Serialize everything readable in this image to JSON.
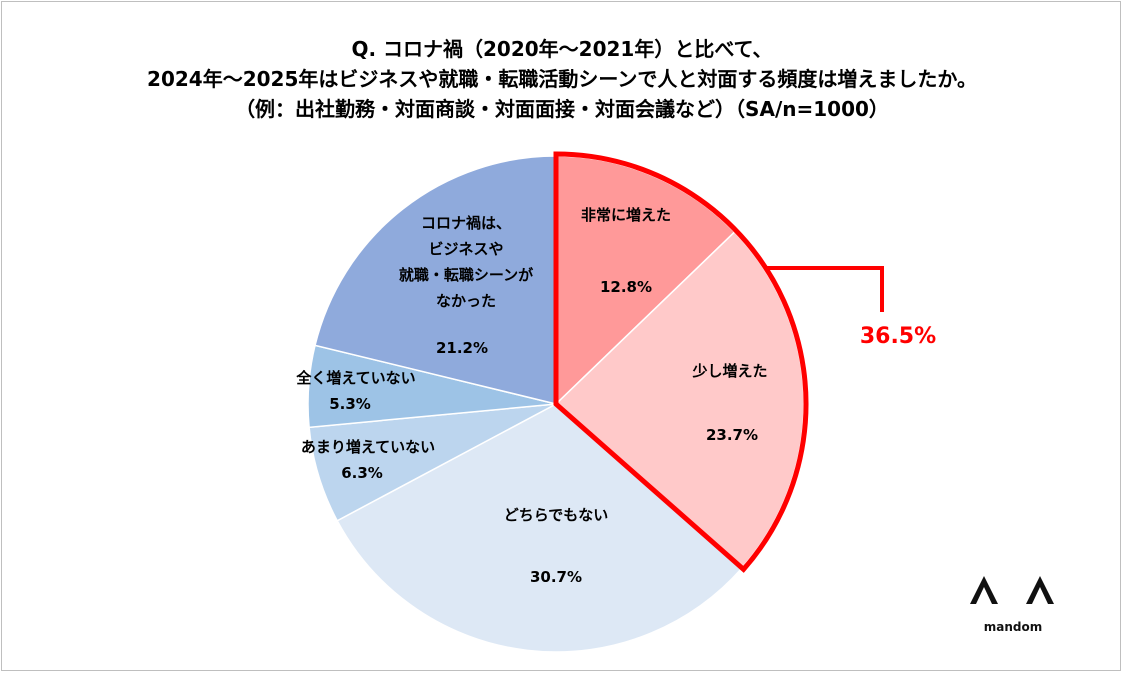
{
  "title": {
    "line1": "Q. コロナ禍（2020年～2021年）と比べて、",
    "line2": "2024年～2025年はビジネスや就職・転職活動シーンで人と対面する頻度は増えましたか。",
    "line3": "（例：出社勤務・対面商談・対面面接・対面会議など）（SA/n=1000）"
  },
  "chart_data": {
    "type": "pie",
    "title": "Q. コロナ禍（2020年～2021年）と比べて、2024年～2025年はビジネスや就職・転職活動シーンで人と対面する頻度は増えましたか。（例：出社勤務・対面商談・対面面接・対面会議など）（SA/n=1000）",
    "start": "12 o'clock, clockwise",
    "slices": [
      {
        "label": "非常に増えた",
        "label_lines": [
          "非常に増えた"
        ],
        "value": 12.8,
        "display": "12.8%",
        "color": "#ff9999"
      },
      {
        "label": "少し増えた",
        "label_lines": [
          "少し増えた"
        ],
        "value": 23.7,
        "display": "23.7%",
        "color": "#ffc9c9"
      },
      {
        "label": "どちらでもない",
        "label_lines": [
          "どちらでもない"
        ],
        "value": 30.7,
        "display": "30.7%",
        "color": "#dde8f5"
      },
      {
        "label": "あまり増えていない",
        "label_lines": [
          "あまり増えていない"
        ],
        "value": 6.3,
        "display": "6.3%",
        "color": "#bcd5ee"
      },
      {
        "label": "全く増えていない",
        "label_lines": [
          "全く増えていない"
        ],
        "value": 5.3,
        "display": "5.3%",
        "color": "#9dc3e6"
      },
      {
        "label": "コロナ禍は、ビジネスや就職・転職シーンがなかった",
        "label_lines": [
          "コロナ禍は、",
          "ビジネスや",
          "就職・転職シーンが",
          "なかった"
        ],
        "value": 21.2,
        "display": "21.2%",
        "color": "#8faadc"
      }
    ],
    "highlight": {
      "slices": [
        "非常に増えた",
        "少し増えた"
      ],
      "total": "36.5%",
      "color": "#ff0000"
    }
  },
  "logo": {
    "text": "mandom"
  }
}
